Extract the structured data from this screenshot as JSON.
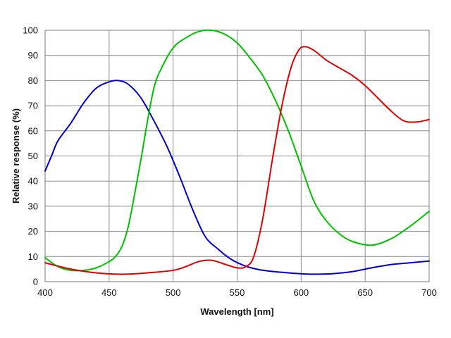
{
  "chart_data": {
    "type": "line",
    "title": "",
    "xlabel": "Wavelength [nm]",
    "ylabel": "Relative response (%)",
    "xlim": [
      400,
      700
    ],
    "ylim": [
      0,
      100
    ],
    "grid": true,
    "legend": "none",
    "x_ticks": [
      400,
      450,
      500,
      550,
      600,
      650,
      700
    ],
    "y_ticks": [
      0,
      10,
      20,
      30,
      40,
      50,
      60,
      70,
      80,
      90,
      100
    ],
    "series": [
      {
        "color": "#0000cc",
        "x": [
          400,
          405,
          410,
          420,
          430,
          440,
          450,
          457,
          465,
          475,
          485,
          495,
          505,
          515,
          525,
          535,
          545,
          555,
          565,
          575,
          590,
          605,
          615,
          625,
          640,
          655,
          670,
          685,
          700
        ],
        "y": [
          44,
          50,
          56,
          63,
          71,
          77,
          79.5,
          80,
          78.5,
          73,
          64,
          54,
          42,
          29,
          18,
          13,
          9,
          6.5,
          5,
          4.2,
          3.5,
          3,
          3,
          3.2,
          4,
          5.5,
          6.8,
          7.5,
          8.2
        ]
      },
      {
        "color": "#00c000",
        "x": [
          400,
          410,
          420,
          430,
          440,
          450,
          455,
          460,
          465,
          470,
          475,
          480,
          485,
          490,
          500,
          510,
          520,
          530,
          540,
          550,
          560,
          570,
          580,
          590,
          600,
          610,
          620,
          630,
          640,
          655,
          670,
          685,
          700
        ],
        "y": [
          9.5,
          6,
          4.5,
          4.5,
          5.5,
          8,
          10,
          14,
          22,
          35,
          49,
          64,
          77,
          84,
          93,
          97,
          99.5,
          100,
          98.5,
          95,
          89,
          82,
          72,
          60,
          46,
          32,
          24,
          19,
          16,
          14.5,
          17,
          22,
          28
        ]
      },
      {
        "color": "#e00000",
        "x": [
          400,
          420,
          440,
          455,
          465,
          480,
          500,
          510,
          520,
          530,
          540,
          550,
          557,
          563,
          570,
          578,
          585,
          592,
          598,
          603,
          610,
          620,
          630,
          640,
          650,
          660,
          670,
          680,
          690,
          700
        ],
        "y": [
          7.5,
          5,
          3.5,
          3,
          3,
          3.5,
          4.5,
          6,
          8,
          8.5,
          7,
          5.5,
          6,
          10,
          25,
          50,
          70,
          85,
          92,
          93.5,
          92,
          88,
          85,
          82,
          78,
          73,
          68,
          64,
          63.5,
          64.5
        ]
      }
    ]
  }
}
